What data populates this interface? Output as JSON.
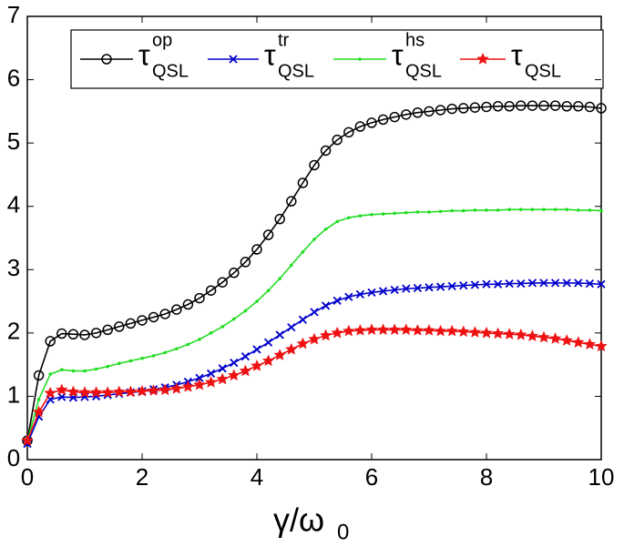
{
  "chart_data": {
    "type": "line",
    "x_label": "γ/ω",
    "x_label_sub": "0",
    "x": [
      0,
      0.2,
      0.4,
      0.6,
      0.8,
      1,
      1.2,
      1.4,
      1.6,
      1.8,
      2,
      2.2,
      2.4,
      2.6,
      2.8,
      3,
      3.2,
      3.4,
      3.6,
      3.8,
      4,
      4.2,
      4.4,
      4.6,
      4.8,
      5,
      5.2,
      5.4,
      5.6,
      5.8,
      6,
      6.2,
      6.4,
      6.6,
      6.8,
      7,
      7.2,
      7.4,
      7.6,
      7.8,
      8,
      8.2,
      8.4,
      8.6,
      8.8,
      9,
      9.2,
      9.4,
      9.6,
      9.8,
      10
    ],
    "series": [
      {
        "name": "τ",
        "sup": "op",
        "sub": "QSL",
        "color": "#000000",
        "marker": "circle",
        "values": [
          0.3,
          1.33,
          1.87,
          1.99,
          1.98,
          1.97,
          2.0,
          2.05,
          2.1,
          2.15,
          2.2,
          2.25,
          2.3,
          2.37,
          2.45,
          2.55,
          2.67,
          2.8,
          2.95,
          3.12,
          3.32,
          3.55,
          3.8,
          4.08,
          4.37,
          4.65,
          4.88,
          5.05,
          5.17,
          5.26,
          5.32,
          5.37,
          5.41,
          5.45,
          5.48,
          5.5,
          5.52,
          5.54,
          5.55,
          5.56,
          5.57,
          5.58,
          5.58,
          5.59,
          5.59,
          5.59,
          5.59,
          5.58,
          5.58,
          5.57,
          5.55
        ]
      },
      {
        "name": "τ",
        "sup": "tr",
        "sub": "QSL",
        "color": "#0000cc",
        "marker": "x",
        "values": [
          0.25,
          0.68,
          0.95,
          0.99,
          0.98,
          0.99,
          1.0,
          1.02,
          1.04,
          1.06,
          1.08,
          1.11,
          1.14,
          1.18,
          1.23,
          1.29,
          1.36,
          1.44,
          1.53,
          1.63,
          1.74,
          1.85,
          1.97,
          2.09,
          2.21,
          2.33,
          2.43,
          2.51,
          2.57,
          2.61,
          2.64,
          2.66,
          2.68,
          2.7,
          2.71,
          2.72,
          2.73,
          2.74,
          2.75,
          2.76,
          2.77,
          2.77,
          2.78,
          2.78,
          2.79,
          2.79,
          2.79,
          2.79,
          2.79,
          2.78,
          2.77
        ]
      },
      {
        "name": "τ",
        "sup": "hs",
        "sub": "QSL",
        "color": "#22dd22",
        "marker": "dot",
        "values": [
          0.3,
          0.95,
          1.35,
          1.42,
          1.4,
          1.4,
          1.43,
          1.47,
          1.52,
          1.56,
          1.6,
          1.64,
          1.69,
          1.75,
          1.82,
          1.9,
          2.0,
          2.1,
          2.22,
          2.35,
          2.5,
          2.67,
          2.86,
          3.07,
          3.28,
          3.48,
          3.64,
          3.76,
          3.82,
          3.85,
          3.87,
          3.88,
          3.89,
          3.9,
          3.91,
          3.91,
          3.92,
          3.93,
          3.93,
          3.94,
          3.94,
          3.94,
          3.95,
          3.95,
          3.95,
          3.95,
          3.95,
          3.95,
          3.94,
          3.94,
          3.93
        ]
      },
      {
        "name": "τ",
        "sub": "QSL",
        "color": "#ee1111",
        "marker": "star",
        "values": [
          0.3,
          0.75,
          1.05,
          1.1,
          1.07,
          1.06,
          1.06,
          1.06,
          1.07,
          1.07,
          1.08,
          1.09,
          1.1,
          1.12,
          1.15,
          1.18,
          1.22,
          1.27,
          1.33,
          1.4,
          1.48,
          1.56,
          1.65,
          1.74,
          1.83,
          1.9,
          1.96,
          2.0,
          2.03,
          2.04,
          2.05,
          2.05,
          2.05,
          2.05,
          2.04,
          2.04,
          2.03,
          2.03,
          2.02,
          2.01,
          2.0,
          1.99,
          1.98,
          1.97,
          1.95,
          1.93,
          1.91,
          1.88,
          1.85,
          1.82,
          1.79
        ]
      }
    ],
    "xlim": [
      0,
      10
    ],
    "xticks": [
      0,
      2,
      4,
      6,
      8,
      10
    ],
    "ylim": [
      0,
      7
    ],
    "yticks": [
      0,
      1,
      2,
      3,
      4,
      5,
      6,
      7
    ],
    "grid": false,
    "legend": "top"
  }
}
